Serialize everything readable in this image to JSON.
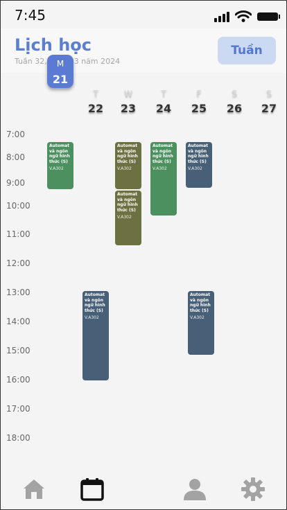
{
  "status": {
    "time": "7:45"
  },
  "header": {
    "title": "Lịch học",
    "subtitle": "Tuần 32, tháng 3 năm 2024",
    "week_button": "Tuần"
  },
  "days": [
    {
      "letter": "M",
      "num": "21",
      "selected": true
    },
    {
      "letter": "T",
      "num": "22"
    },
    {
      "letter": "W",
      "num": "23"
    },
    {
      "letter": "T",
      "num": "24"
    },
    {
      "letter": "F",
      "num": "25"
    },
    {
      "letter": "S",
      "num": "26"
    },
    {
      "letter": "S",
      "num": "27"
    }
  ],
  "hours": [
    "7:00",
    "8:00",
    "9:00",
    "10:00",
    "11:00",
    "12:00",
    "13:00",
    "14:00",
    "15:00",
    "16:00",
    "17:00",
    "18:00"
  ],
  "events": [
    {
      "name": "Automat và ngôn ngữ hình thức (S)",
      "room": "V.A302",
      "color": "#4c9060"
    },
    {
      "name": "Automat và ngôn ngữ hình thức (S)",
      "room": "V.A302",
      "color": "#6d7040"
    },
    {
      "name": "Automat và ngôn ngữ hình thức (S)",
      "room": "V.A302",
      "color": "#6d7040"
    },
    {
      "name": "Automat và ngôn ngữ hình thức (S)",
      "room": "V.A302",
      "color": "#4c9060"
    },
    {
      "name": "Automat và ngôn ngữ hình thức (S)",
      "room": "V.A302",
      "color": "#485f78"
    },
    {
      "name": "Automat và ngôn ngữ hình thức (S)",
      "room": "V.A302",
      "color": "#485f78"
    },
    {
      "name": "Automat và ngôn ngữ hình thức (S)",
      "room": "V.A302",
      "color": "#485f78"
    }
  ],
  "nav": {
    "icons": [
      "home-icon",
      "calendar-icon",
      "user-icon",
      "gear-icon"
    ],
    "active": "calendar-icon"
  },
  "colors": {
    "accent": "#5b7fd0",
    "button_bg": "#cbd9f3"
  }
}
